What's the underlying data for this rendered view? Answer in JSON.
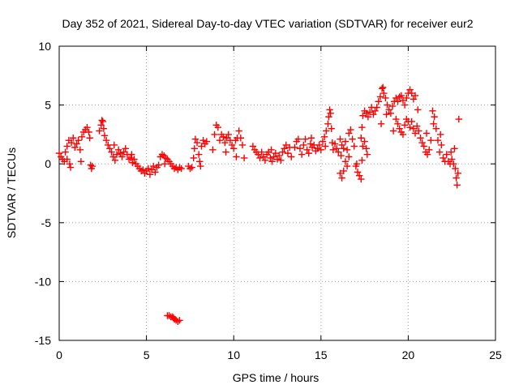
{
  "chart_data": {
    "type": "scatter",
    "title": "Day 352 of 2021, Sidereal Day-to-day VTEC variation (SDTVAR) for receiver eur2",
    "xlabel": "GPS time / hours",
    "ylabel": "SDTVAR / TECUs",
    "xlim": [
      0,
      25
    ],
    "ylim": [
      -15,
      10
    ],
    "x_ticks": [
      0,
      5,
      10,
      15,
      20,
      25
    ],
    "y_ticks": [
      -15,
      -10,
      -5,
      0,
      5,
      10
    ],
    "x_tick_labels": [
      "0",
      "5",
      "10",
      "15",
      "20",
      "25"
    ],
    "y_tick_labels": [
      "-15",
      "-10",
      "-5",
      "0",
      "5",
      "10"
    ],
    "grid": true,
    "marker": "+",
    "series": [
      {
        "name": "eur2",
        "color": "#ff0000",
        "points": [
          [
            0.0,
            0.9
          ],
          [
            0.1,
            0.6
          ],
          [
            0.2,
            0.4
          ],
          [
            0.3,
            0.2
          ],
          [
            0.35,
            1.0
          ],
          [
            0.45,
            1.5
          ],
          [
            0.55,
            2.0
          ],
          [
            0.6,
            0.0
          ],
          [
            0.65,
            -0.3
          ],
          [
            0.7,
            1.8
          ],
          [
            0.8,
            2.2
          ],
          [
            0.9,
            1.4
          ],
          [
            1.0,
            1.7
          ],
          [
            1.1,
            2.0
          ],
          [
            1.2,
            1.2
          ],
          [
            1.3,
            2.3
          ],
          [
            1.4,
            2.7
          ],
          [
            1.5,
            2.9
          ],
          [
            1.6,
            3.1
          ],
          [
            1.7,
            2.7
          ],
          [
            1.75,
            2.2
          ],
          [
            1.8,
            -0.1
          ],
          [
            1.85,
            -0.4
          ],
          [
            1.9,
            -0.2
          ],
          [
            2.3,
            2.8
          ],
          [
            2.4,
            3.3
          ],
          [
            2.45,
            3.7
          ],
          [
            2.5,
            3.6
          ],
          [
            2.55,
            3.0
          ],
          [
            2.6,
            2.4
          ],
          [
            2.7,
            2.0
          ],
          [
            2.8,
            1.6
          ],
          [
            2.9,
            1.3
          ],
          [
            3.0,
            1.0
          ],
          [
            3.1,
            0.6
          ],
          [
            3.2,
            0.3
          ],
          [
            3.3,
            0.8
          ],
          [
            3.4,
            1.2
          ],
          [
            3.5,
            0.9
          ],
          [
            3.6,
            0.6
          ],
          [
            3.7,
            1.0
          ],
          [
            3.8,
            1.3
          ],
          [
            3.9,
            0.8
          ],
          [
            4.0,
            0.4
          ],
          [
            4.1,
            0.5
          ],
          [
            4.2,
            0.1
          ],
          [
            4.3,
            0.4
          ],
          [
            4.4,
            0.0
          ],
          [
            4.5,
            -0.2
          ],
          [
            4.6,
            -0.4
          ],
          [
            4.7,
            -0.6
          ],
          [
            4.8,
            -0.5
          ],
          [
            4.9,
            -0.8
          ],
          [
            5.0,
            -0.6
          ],
          [
            5.1,
            -0.4
          ],
          [
            5.2,
            -0.9
          ],
          [
            5.3,
            -0.5
          ],
          [
            5.4,
            -0.2
          ],
          [
            5.5,
            -0.7
          ],
          [
            5.6,
            -0.3
          ],
          [
            5.7,
            -0.1
          ],
          [
            5.8,
            0.6
          ],
          [
            5.9,
            0.8
          ],
          [
            6.0,
            0.7
          ],
          [
            6.1,
            0.5
          ],
          [
            6.2,
            0.4
          ],
          [
            6.3,
            0.2
          ],
          [
            6.4,
            0.0
          ],
          [
            6.5,
            -0.2
          ],
          [
            6.6,
            -0.4
          ],
          [
            6.7,
            -0.3
          ],
          [
            6.8,
            -0.5
          ],
          [
            6.9,
            -0.3
          ],
          [
            7.0,
            -0.4
          ],
          [
            6.2,
            -12.9
          ],
          [
            6.3,
            -12.9
          ],
          [
            6.4,
            -13.0
          ],
          [
            6.5,
            -13.0
          ],
          [
            6.55,
            -13.1
          ],
          [
            6.6,
            -13.2
          ],
          [
            6.7,
            -13.3
          ],
          [
            6.8,
            -13.4
          ],
          [
            6.9,
            -13.3
          ],
          [
            7.4,
            -0.2
          ],
          [
            7.5,
            -0.4
          ],
          [
            7.6,
            -0.3
          ],
          [
            7.7,
            0.5
          ],
          [
            7.75,
            1.3
          ],
          [
            7.8,
            2.1
          ],
          [
            7.9,
            1.8
          ],
          [
            8.0,
            0.8
          ],
          [
            8.05,
            0.2
          ],
          [
            8.1,
            -0.2
          ],
          [
            8.15,
            1.5
          ],
          [
            8.25,
            2.0
          ],
          [
            8.35,
            1.7
          ],
          [
            8.45,
            1.9
          ],
          [
            8.8,
            1.2
          ],
          [
            8.9,
            2.5
          ],
          [
            9.0,
            3.3
          ],
          [
            9.1,
            3.1
          ],
          [
            9.2,
            2.0
          ],
          [
            9.3,
            2.5
          ],
          [
            9.4,
            2.3
          ],
          [
            9.5,
            1.8
          ],
          [
            9.6,
            2.2
          ],
          [
            9.7,
            2.5
          ],
          [
            9.8,
            2.0
          ],
          [
            9.9,
            1.6
          ],
          [
            10.0,
            1.3
          ],
          [
            10.1,
            2.0
          ],
          [
            10.15,
            0.6
          ],
          [
            10.2,
            2.2
          ],
          [
            10.3,
            2.8
          ],
          [
            10.4,
            2.2
          ],
          [
            10.5,
            1.6
          ],
          [
            10.6,
            0.5
          ],
          [
            11.1,
            1.5
          ],
          [
            11.2,
            1.2
          ],
          [
            11.3,
            1.0
          ],
          [
            11.4,
            0.8
          ],
          [
            11.5,
            0.5
          ],
          [
            11.6,
            1.0
          ],
          [
            11.7,
            0.6
          ],
          [
            11.8,
            0.3
          ],
          [
            11.9,
            0.8
          ],
          [
            12.0,
            1.0
          ],
          [
            12.1,
            0.5
          ],
          [
            12.2,
            0.2
          ],
          [
            12.3,
            0.6
          ],
          [
            12.4,
            0.9
          ],
          [
            12.5,
            0.4
          ],
          [
            12.6,
            0.7
          ],
          [
            12.7,
            0.3
          ],
          [
            12.8,
            1.0
          ],
          [
            12.9,
            1.3
          ],
          [
            13.0,
            1.6
          ],
          [
            13.1,
            0.9
          ],
          [
            13.2,
            1.4
          ],
          [
            13.3,
            0.6
          ],
          [
            13.5,
            1.4
          ],
          [
            13.6,
            1.9
          ],
          [
            13.7,
            2.1
          ],
          [
            13.8,
            1.3
          ],
          [
            13.9,
            0.8
          ],
          [
            14.0,
            1.6
          ],
          [
            14.1,
            2.1
          ],
          [
            14.2,
            1.2
          ],
          [
            14.3,
            0.9
          ],
          [
            14.4,
            1.7
          ],
          [
            14.5,
            1.4
          ],
          [
            14.6,
            1.6
          ],
          [
            14.7,
            1.1
          ],
          [
            14.8,
            1.3
          ],
          [
            14.9,
            1.6
          ],
          [
            15.0,
            1.2
          ],
          [
            15.1,
            1.9
          ],
          [
            15.2,
            2.3
          ],
          [
            15.3,
            2.8
          ],
          [
            15.4,
            3.4
          ],
          [
            15.45,
            4.0
          ],
          [
            15.5,
            4.6
          ],
          [
            15.55,
            4.3
          ],
          [
            15.6,
            3.0
          ],
          [
            15.65,
            1.8
          ],
          [
            15.7,
            1.2
          ],
          [
            15.8,
            1.7
          ],
          [
            15.9,
            1.3
          ],
          [
            16.0,
            1.0
          ],
          [
            16.1,
            2.1
          ],
          [
            16.15,
            0.7
          ],
          [
            16.2,
            1.6
          ],
          [
            16.3,
            1.3
          ],
          [
            16.4,
            1.9
          ],
          [
            16.5,
            1.2
          ],
          [
            16.1,
            -0.8
          ],
          [
            16.2,
            -1.2
          ],
          [
            16.3,
            -0.6
          ],
          [
            16.4,
            0.2
          ],
          [
            16.5,
            -0.2
          ],
          [
            16.6,
            0.6
          ],
          [
            16.6,
            2.6
          ],
          [
            16.7,
            2.9
          ],
          [
            16.8,
            2.1
          ],
          [
            16.9,
            1.5
          ],
          [
            17.0,
            -0.2
          ],
          [
            17.1,
            -0.7
          ],
          [
            17.2,
            -1.0
          ],
          [
            17.3,
            -1.3
          ],
          [
            17.35,
            0.3
          ],
          [
            17.4,
            1.5
          ],
          [
            17.5,
            1.9
          ],
          [
            17.6,
            1.3
          ],
          [
            17.65,
            0.8
          ],
          [
            17.3,
            2.2
          ],
          [
            17.35,
            3.1
          ],
          [
            17.4,
            4.1
          ],
          [
            17.5,
            4.5
          ],
          [
            17.6,
            4.3
          ],
          [
            17.7,
            4.0
          ],
          [
            17.8,
            4.4
          ],
          [
            17.9,
            4.8
          ],
          [
            18.0,
            4.2
          ],
          [
            18.1,
            4.5
          ],
          [
            18.2,
            4.8
          ],
          [
            18.3,
            5.3
          ],
          [
            18.4,
            5.7
          ],
          [
            18.5,
            6.4
          ],
          [
            18.55,
            6.5
          ],
          [
            18.6,
            6.0
          ],
          [
            18.7,
            5.6
          ],
          [
            18.8,
            5.0
          ],
          [
            18.9,
            4.6
          ],
          [
            19.0,
            4.3
          ],
          [
            19.1,
            4.9
          ],
          [
            19.2,
            5.3
          ],
          [
            19.3,
            5.6
          ],
          [
            19.4,
            5.3
          ],
          [
            19.5,
            5.7
          ],
          [
            19.6,
            5.8
          ],
          [
            19.7,
            5.4
          ],
          [
            19.8,
            5.0
          ],
          [
            19.9,
            5.6
          ],
          [
            20.0,
            6.0
          ],
          [
            20.1,
            6.3
          ],
          [
            20.2,
            6.0
          ],
          [
            20.3,
            5.5
          ],
          [
            20.4,
            5.8
          ],
          [
            19.3,
            3.8
          ],
          [
            19.4,
            3.4
          ],
          [
            19.5,
            3.0
          ],
          [
            19.6,
            2.7
          ],
          [
            19.7,
            2.5
          ],
          [
            19.8,
            3.3
          ],
          [
            19.9,
            3.8
          ],
          [
            20.0,
            3.6
          ],
          [
            20.1,
            3.1
          ],
          [
            20.2,
            3.6
          ],
          [
            20.3,
            3.0
          ],
          [
            20.4,
            2.6
          ],
          [
            20.5,
            3.2
          ],
          [
            20.6,
            2.8
          ],
          [
            20.7,
            2.2
          ],
          [
            20.8,
            1.8
          ],
          [
            20.9,
            1.5
          ],
          [
            21.0,
            1.0
          ],
          [
            21.1,
            0.8
          ],
          [
            21.2,
            1.2
          ],
          [
            21.3,
            2.0
          ],
          [
            21.4,
            4.5
          ],
          [
            21.5,
            4.0
          ],
          [
            21.6,
            3.0
          ],
          [
            21.7,
            2.0
          ],
          [
            21.8,
            1.0
          ],
          [
            21.9,
            1.6
          ],
          [
            22.0,
            0.5
          ],
          [
            22.1,
            0.2
          ],
          [
            22.2,
            0.8
          ],
          [
            22.3,
            0.2
          ],
          [
            22.4,
            0.0
          ],
          [
            22.5,
            0.4
          ],
          [
            22.6,
            0.0
          ],
          [
            22.7,
            -0.4
          ],
          [
            22.75,
            -1.2
          ],
          [
            22.8,
            -1.8
          ],
          [
            22.85,
            -0.8
          ],
          [
            22.9,
            3.8
          ],
          [
            0.45,
            0.4
          ],
          [
            1.25,
            0.2
          ],
          [
            3.15,
            1.6
          ],
          [
            4.15,
            0.8
          ],
          [
            6.05,
            0.0
          ],
          [
            9.55,
            1.0
          ],
          [
            12.15,
            1.2
          ],
          [
            14.45,
            2.2
          ],
          [
            15.25,
            1.5
          ],
          [
            17.05,
            0.0
          ],
          [
            18.45,
            3.4
          ],
          [
            18.75,
            4.2
          ],
          [
            19.15,
            2.8
          ],
          [
            20.55,
            4.6
          ],
          [
            21.05,
            2.6
          ],
          [
            21.45,
            3.4
          ],
          [
            21.85,
            2.5
          ],
          [
            22.45,
            1.0
          ],
          [
            22.65,
            1.3
          ]
        ]
      }
    ]
  }
}
